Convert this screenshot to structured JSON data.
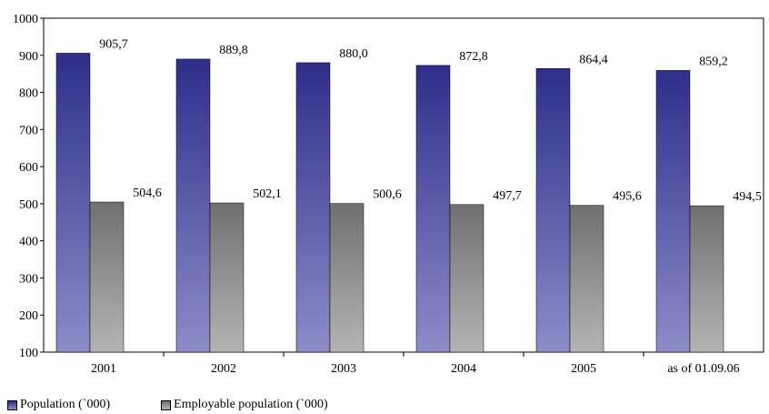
{
  "chart_data": {
    "type": "bar",
    "title": "",
    "xlabel": "",
    "ylabel": "",
    "ylim": [
      100,
      1000
    ],
    "yticks": [
      100,
      200,
      300,
      400,
      500,
      600,
      700,
      800,
      900,
      1000
    ],
    "grid": false,
    "legend_position": "bottom-left",
    "categories": [
      "2001",
      "2002",
      "2003",
      "2004",
      "2005",
      "as of 01.09.06"
    ],
    "series": [
      {
        "name": "Population (`000)",
        "values": [
          905.7,
          889.8,
          880.0,
          872.8,
          864.4,
          859.2
        ],
        "labels": [
          "905,7",
          "889,8",
          "880,0",
          "872,8",
          "864,4",
          "859,2"
        ],
        "color_top": "#2e2e8a",
        "color_bottom": "#8c8cc8"
      },
      {
        "name": "Employable population (`000)",
        "values": [
          504.6,
          502.1,
          500.6,
          497.7,
          495.6,
          494.5
        ],
        "labels": [
          "504,6",
          "502,1",
          "500,6",
          "497,7",
          "495,6",
          "494,5"
        ],
        "color_top": "#707070",
        "color_bottom": "#b4b4b4"
      }
    ]
  }
}
